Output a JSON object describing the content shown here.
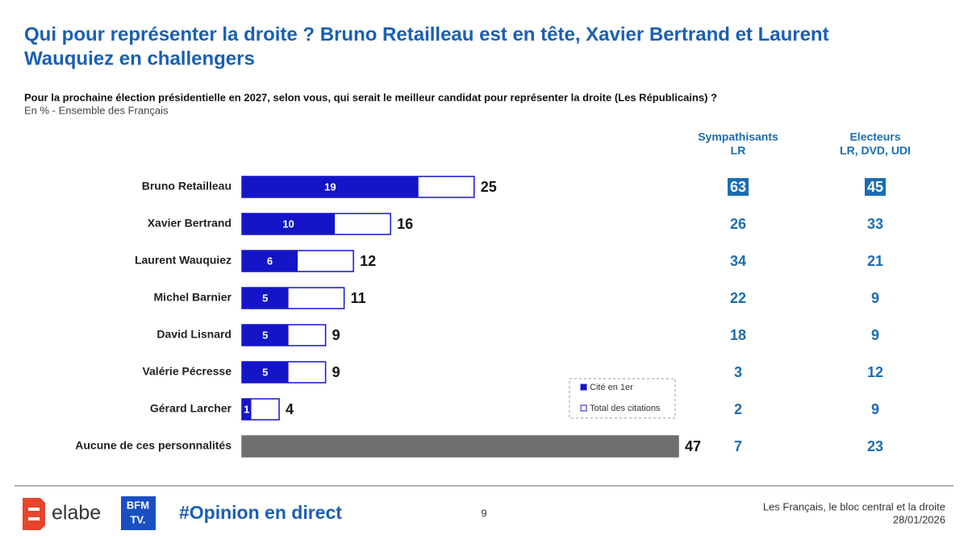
{
  "chart_data": {
    "type": "bar",
    "orientation": "horizontal",
    "title": [
      "Qui pour représenter la droite ? Bruno Retailleau est en tête, Xavier Bertrand et Laurent",
      "Wauquiez en challengers"
    ],
    "subtitle": "Pour la prochaine élection présidentielle en 2027, selon vous, qui serait le meilleur candidat pour représenter la droite (Les Républicains) ?",
    "note": "En % - Ensemble des Français",
    "categories": [
      "Bruno Retailleau",
      "Xavier Bertrand",
      "Laurent Wauquiez",
      "Michel Barnier",
      "David Lisnard",
      "Valérie Pécresse",
      "Gérard Larcher",
      "Aucune de ces personnalités"
    ],
    "xlim": [
      0,
      47
    ],
    "series": [
      {
        "name": "Cité en 1er",
        "color": "#1515c8",
        "values": [
          19,
          10,
          6,
          5,
          5,
          5,
          1,
          null
        ]
      },
      {
        "name": "Total des citations",
        "color": "#ffffff",
        "values": [
          25,
          16,
          12,
          11,
          9,
          9,
          4,
          47
        ],
        "bar_colors": [
          "#ffffff",
          "#ffffff",
          "#ffffff",
          "#ffffff",
          "#ffffff",
          "#ffffff",
          "#ffffff",
          "#6f6f6f"
        ]
      }
    ],
    "columns": [
      {
        "header": [
          "Sympathisants",
          "LR"
        ],
        "values": [
          63,
          26,
          34,
          22,
          18,
          3,
          2,
          7
        ]
      },
      {
        "header": [
          "Electeurs",
          "LR, DVD, UDI"
        ],
        "values": [
          45,
          33,
          21,
          9,
          9,
          12,
          9,
          23
        ]
      }
    ],
    "column_color": "#1a6db3",
    "highlight_row": 0
  },
  "footer": {
    "brand": "elabe",
    "tv_logo": [
      "BFM",
      "TV."
    ],
    "hashtag": "#Opinion en direct",
    "page": "9",
    "study": "Les Français, le bloc central et la droite",
    "date": "28/01/2026"
  }
}
